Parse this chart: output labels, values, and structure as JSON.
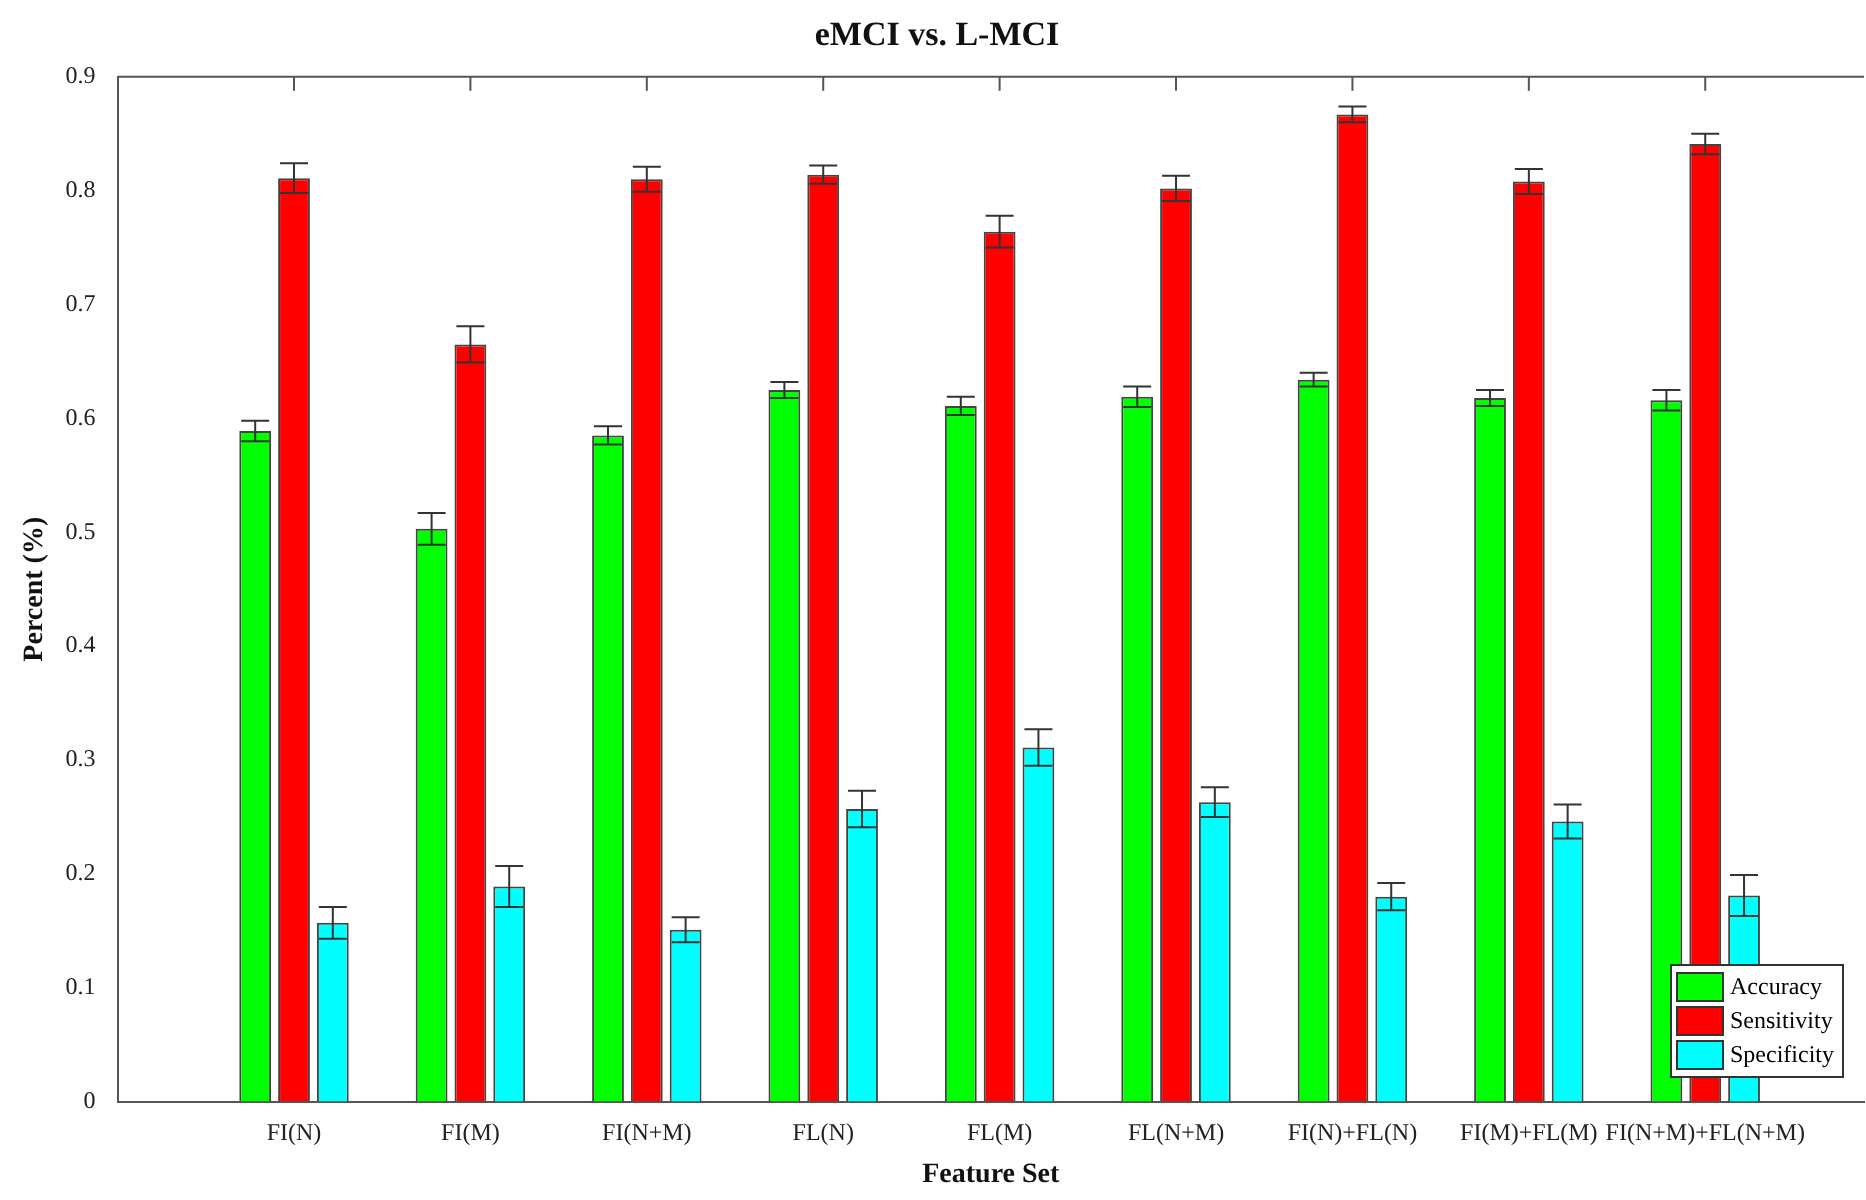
{
  "chart_data": {
    "type": "bar",
    "title": "eMCI vs. L-MCI",
    "xlabel": "Feature Set",
    "ylabel": "Percent (%)",
    "categories": [
      "FI(N)",
      "FI(M)",
      "FI(N+M)",
      "FL(N)",
      "FL(M)",
      "FL(N+M)",
      "FI(N)+FL(N)",
      "FI(M)+FL(M)",
      "FI(N+M)+FL(N+M)"
    ],
    "series": [
      {
        "name": "Accuracy",
        "color": "#00ff00",
        "values": [
          0.589,
          0.503,
          0.585,
          0.625,
          0.611,
          0.619,
          0.634,
          0.618,
          0.616
        ],
        "errors": [
          0.009,
          0.014,
          0.008,
          0.007,
          0.008,
          0.009,
          0.006,
          0.007,
          0.009
        ]
      },
      {
        "name": "Sensitivity",
        "color": "#ff0000",
        "values": [
          0.811,
          0.665,
          0.81,
          0.814,
          0.764,
          0.802,
          0.867,
          0.808,
          0.841
        ],
        "errors": [
          0.013,
          0.016,
          0.011,
          0.008,
          0.014,
          0.011,
          0.007,
          0.011,
          0.009
        ]
      },
      {
        "name": "Specificity",
        "color": "#00ffff",
        "values": [
          0.157,
          0.189,
          0.151,
          0.257,
          0.311,
          0.263,
          0.18,
          0.246,
          0.181
        ],
        "errors": [
          0.014,
          0.018,
          0.011,
          0.016,
          0.016,
          0.013,
          0.012,
          0.015,
          0.018
        ]
      }
    ],
    "ylim": [
      0,
      0.9
    ],
    "yticks": [
      0,
      0.1,
      0.2,
      0.3,
      0.4,
      0.5,
      0.6,
      0.7,
      0.8,
      0.9
    ],
    "grid": false,
    "legend": "bottom right"
  }
}
